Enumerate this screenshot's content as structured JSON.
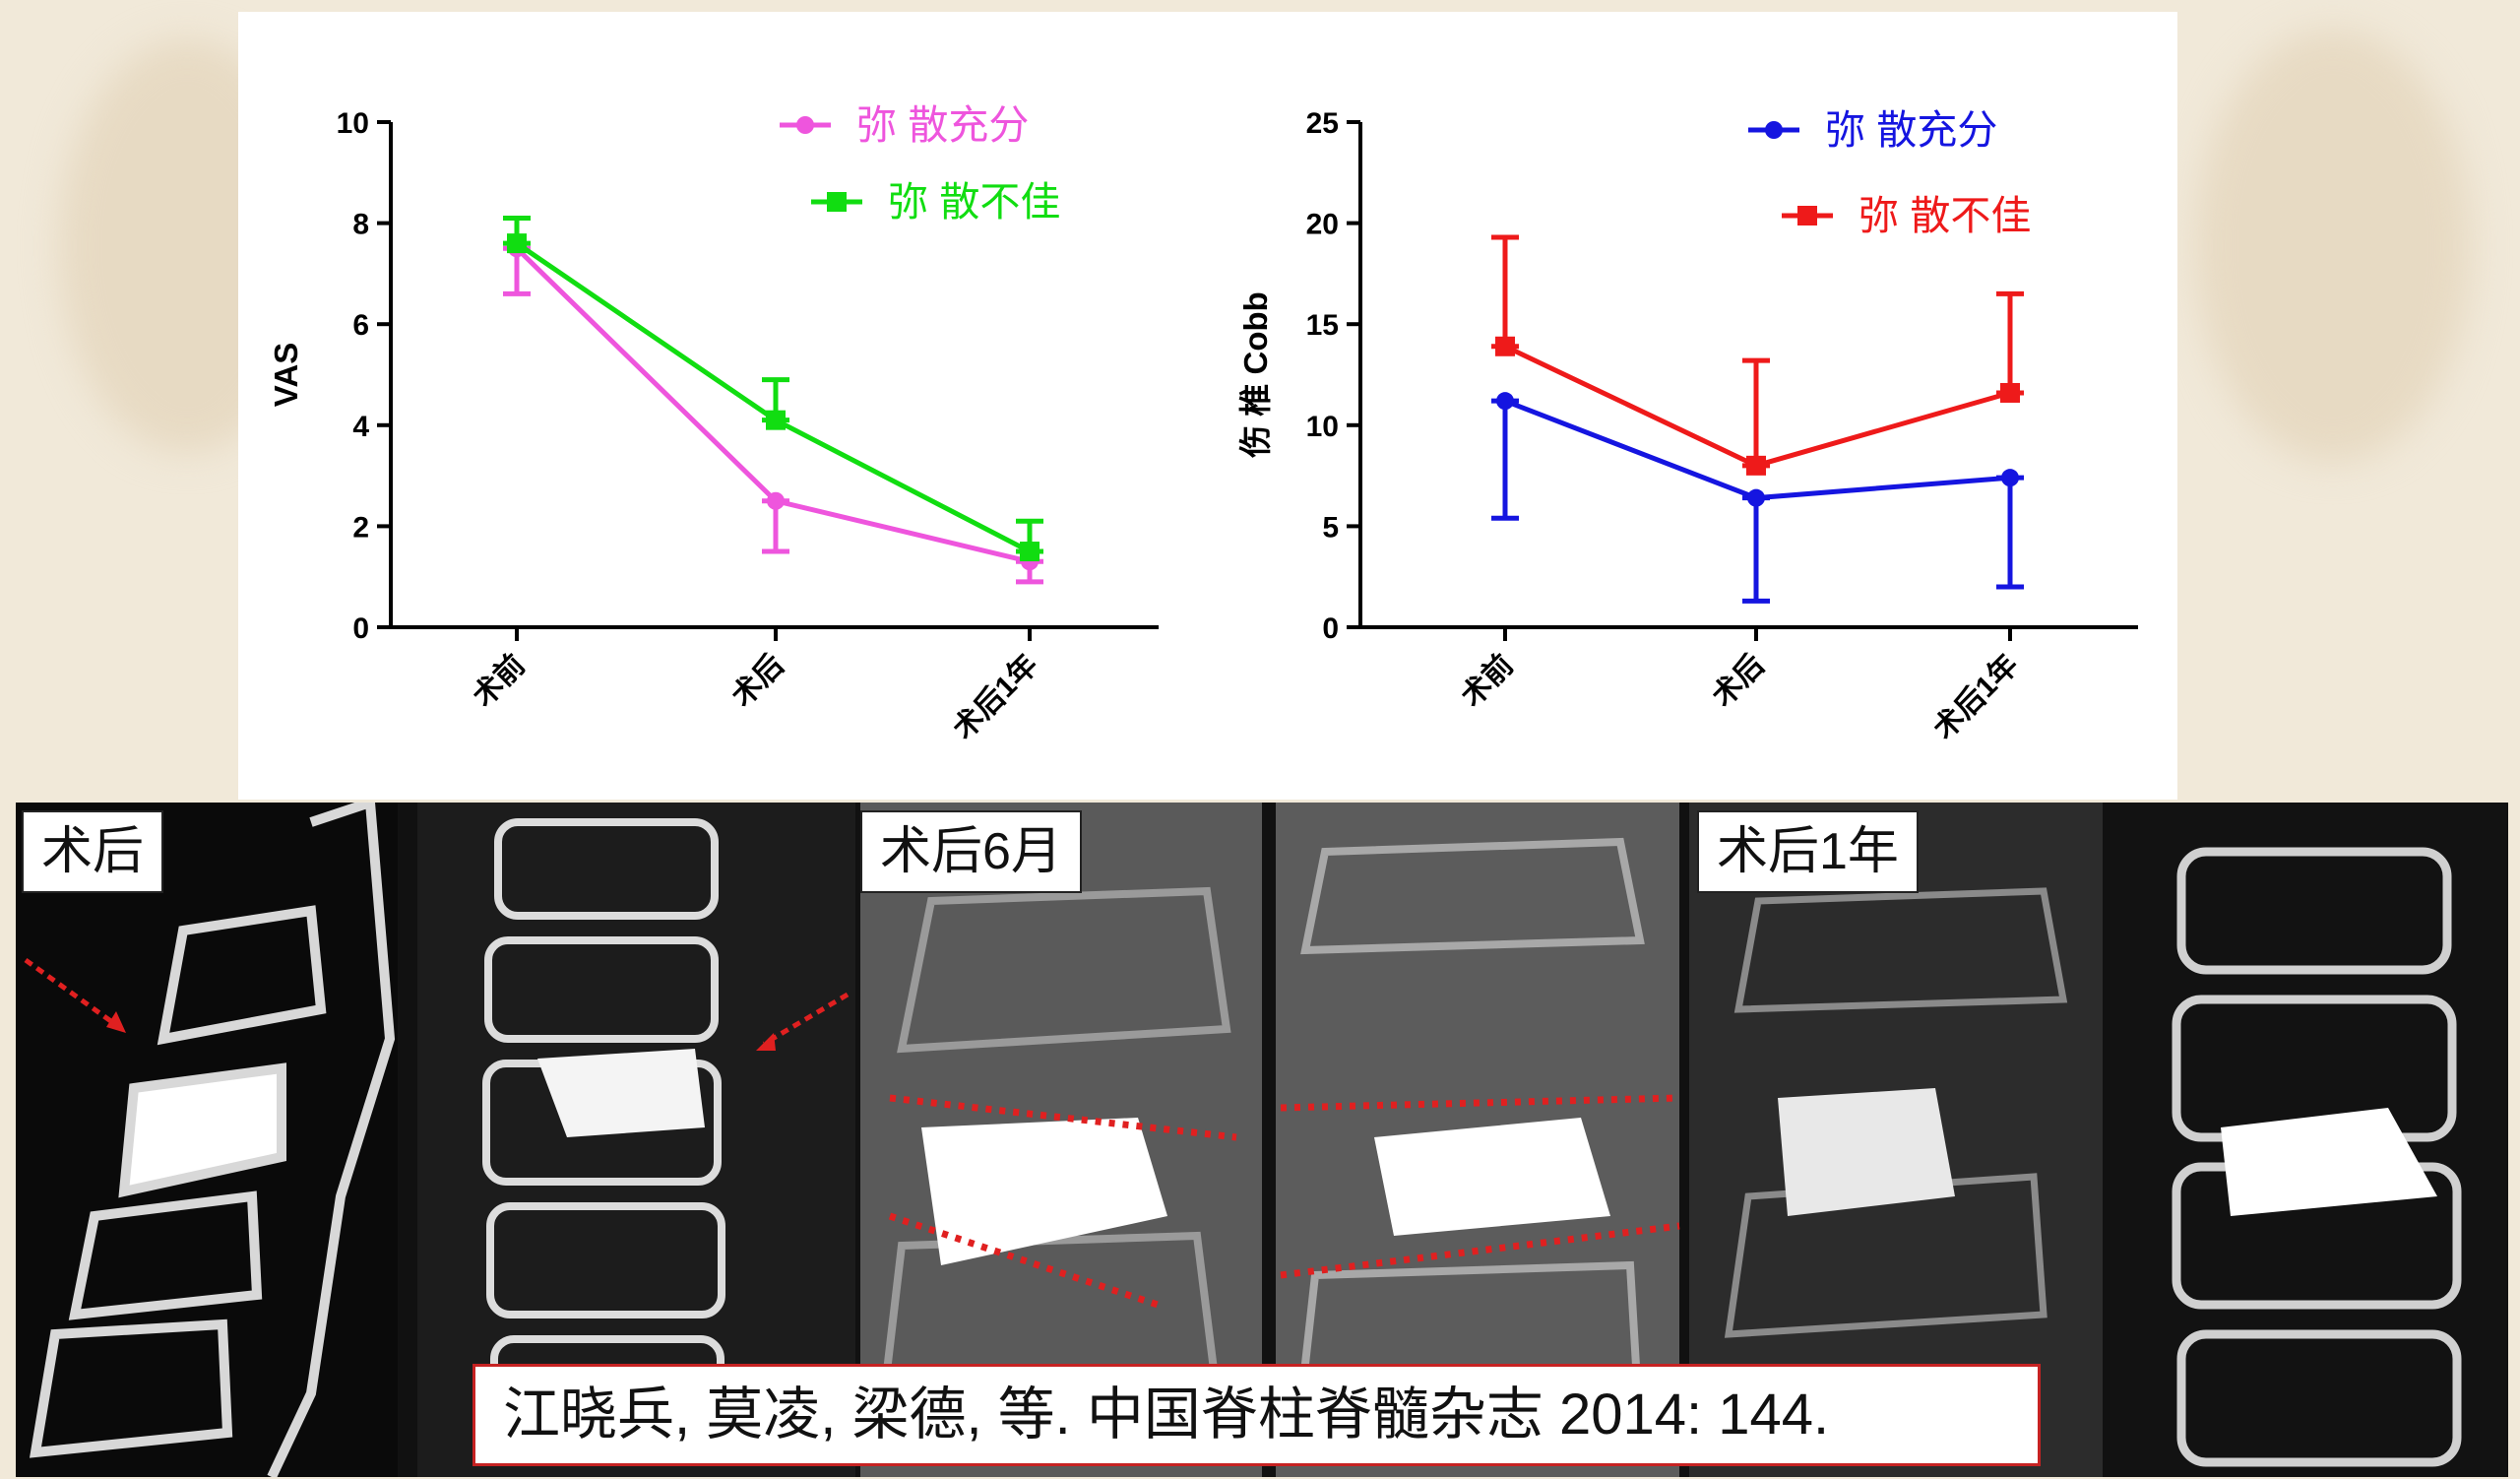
{
  "chart_data": [
    {
      "type": "line",
      "ylabel": "VAS",
      "xlabel": "",
      "categories": [
        "术前",
        "术后",
        "术后1年"
      ],
      "ylim": [
        0,
        10
      ],
      "yticks": [
        0,
        2,
        4,
        6,
        8,
        10
      ],
      "legend_position": "top-right",
      "series": [
        {
          "name": "弥 散充分",
          "color": "#ee55dd",
          "marker": "circle",
          "values": [
            7.5,
            2.5,
            1.3
          ],
          "err_low": [
            6.6,
            1.5,
            0.9
          ],
          "err_high": [
            7.5,
            2.5,
            1.3
          ]
        },
        {
          "name": "弥 散不佳",
          "color": "#11dd11",
          "marker": "square",
          "values": [
            7.6,
            4.1,
            1.5
          ],
          "err_low": [
            7.6,
            4.1,
            1.5
          ],
          "err_high": [
            8.1,
            4.9,
            2.1
          ]
        }
      ]
    },
    {
      "type": "line",
      "ylabel": "伤 椎 Cobb",
      "xlabel": "",
      "categories": [
        "术前",
        "术后",
        "术后1年"
      ],
      "ylim": [
        0,
        25
      ],
      "yticks": [
        0,
        5,
        10,
        15,
        20,
        25
      ],
      "legend_position": "top-right",
      "series": [
        {
          "name": "弥 散充分",
          "color": "#1515e0",
          "marker": "circle",
          "values": [
            11.2,
            6.4,
            7.4
          ],
          "err_low": [
            5.4,
            1.3,
            2.0
          ],
          "err_high": [
            11.2,
            6.4,
            7.4
          ]
        },
        {
          "name": "弥 散不佳",
          "color": "#ee1a1a",
          "marker": "square",
          "values": [
            13.9,
            8.0,
            11.6
          ],
          "err_low": [
            13.9,
            8.0,
            11.6
          ],
          "err_high": [
            19.3,
            13.2,
            16.5
          ]
        }
      ]
    }
  ],
  "image_labels": {
    "post_op": "术后",
    "post_op_6m": "术后6月",
    "post_op_1y": "术后1年"
  },
  "citation": "江晓兵, 莫凌, 梁德, 等. 中国脊柱脊髓杂志 2014: 144.",
  "colors": {
    "arrow": "#e02020",
    "dotted_line": "#e02020"
  }
}
